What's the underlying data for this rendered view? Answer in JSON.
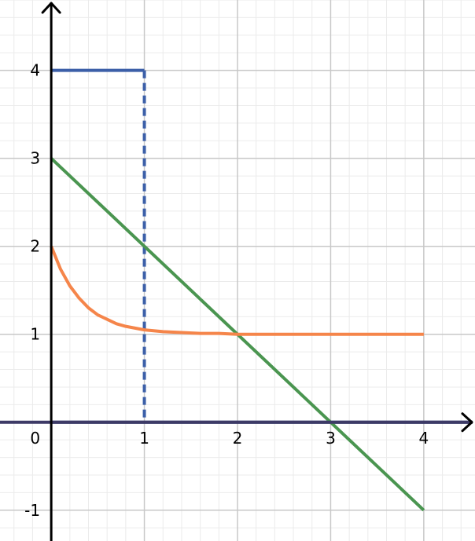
{
  "colors": {
    "background": "#ffffff",
    "grid_major": "#c8c8c8",
    "grid_minor": "#ebebeb",
    "axis": "#000000",
    "x_axis_line": "#3d3a66"
  },
  "chart_data": {
    "type": "line",
    "title": "",
    "xlabel": "",
    "ylabel": "",
    "xlim": [
      -0.55,
      4.55
    ],
    "ylim": [
      -1.35,
      4.8
    ],
    "grid": true,
    "legend": "none",
    "x_ticks": [
      0,
      1,
      2,
      3,
      4
    ],
    "x_tick_labels": [
      "0",
      "1",
      "2",
      "3",
      "4"
    ],
    "y_ticks": [
      -1,
      1,
      2,
      3,
      4
    ],
    "y_tick_labels": [
      "-1",
      "1",
      "2",
      "3",
      "4"
    ],
    "series": [
      {
        "color": "#3c5fa8",
        "style": "solid",
        "x": [
          0,
          1
        ],
        "y": [
          4,
          4
        ]
      },
      {
        "color": "#3c5fa8",
        "style": "dashed",
        "x": [
          1,
          1
        ],
        "y": [
          4,
          0
        ]
      },
      {
        "color": "#1f2f70",
        "style": "solid",
        "x": [
          0,
          4.5
        ],
        "y": [
          0,
          0
        ]
      },
      {
        "color": "#4a9550",
        "style": "solid",
        "x": [
          0,
          4
        ],
        "y": [
          3,
          -1
        ]
      },
      {
        "color": "#f5854a",
        "style": "solid",
        "x": [
          0,
          0.1,
          0.2,
          0.3,
          0.4,
          0.5,
          0.6,
          0.7,
          0.8,
          0.9,
          1.0,
          1.2,
          1.4,
          1.6,
          1.8,
          2.0,
          2.5,
          3.0,
          3.5,
          4.0
        ],
        "y": [
          2,
          1.74,
          1.55,
          1.41,
          1.3,
          1.22,
          1.17,
          1.12,
          1.09,
          1.07,
          1.05,
          1.03,
          1.02,
          1.01,
          1.01,
          1.0,
          1.0,
          1.0,
          1.0,
          1.0
        ]
      }
    ]
  }
}
